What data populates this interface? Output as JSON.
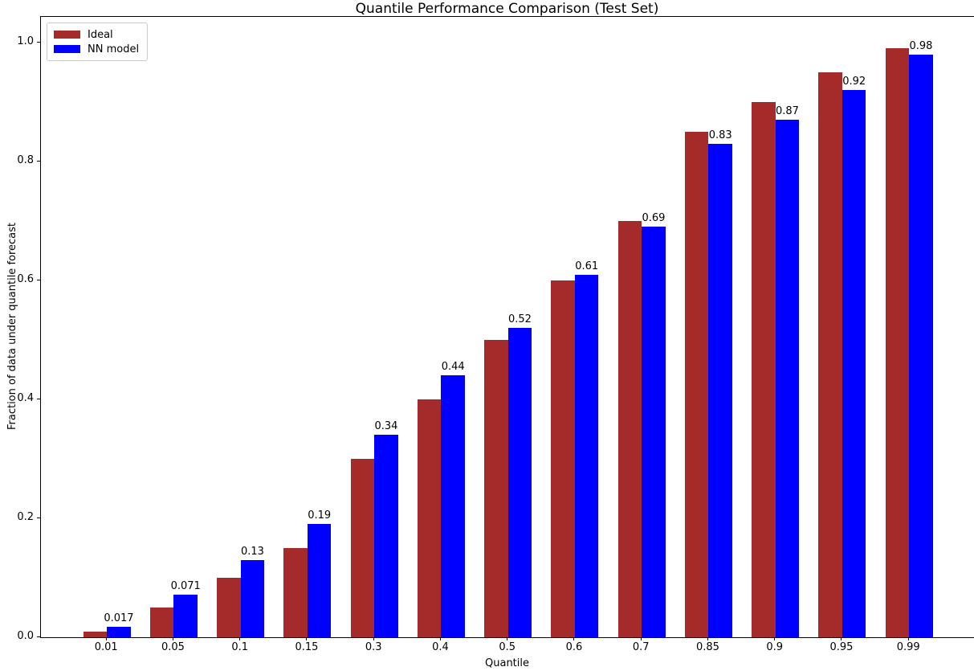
{
  "chart_data": {
    "type": "bar",
    "title": "Quantile Performance Comparison (Test Set)",
    "xlabel": "Quantile",
    "ylabel": "Fraction of data under quantile forecast",
    "categories": [
      "0.01",
      "0.05",
      "0.1",
      "0.15",
      "0.3",
      "0.4",
      "0.5",
      "0.6",
      "0.7",
      "0.85",
      "0.9",
      "0.95",
      "0.99"
    ],
    "series": [
      {
        "name": "Ideal",
        "color": "#A52A2A",
        "values": [
          0.01,
          0.05,
          0.1,
          0.15,
          0.3,
          0.4,
          0.5,
          0.6,
          0.7,
          0.85,
          0.9,
          0.95,
          0.99
        ]
      },
      {
        "name": "NN model",
        "color": "#0000FF",
        "values": [
          0.017,
          0.071,
          0.13,
          0.19,
          0.34,
          0.44,
          0.52,
          0.61,
          0.69,
          0.83,
          0.87,
          0.92,
          0.98
        ],
        "labels": [
          "0.017",
          "0.071",
          "0.13",
          "0.19",
          "0.34",
          "0.44",
          "0.52",
          "0.61",
          "0.69",
          "0.83",
          "0.87",
          "0.92",
          "0.98"
        ]
      }
    ],
    "yticks": [
      "0.0",
      "0.2",
      "0.4",
      "0.6",
      "0.8",
      "1.0"
    ],
    "ylim": [
      0,
      1.043
    ],
    "grid": false,
    "legend_position": "upper left"
  }
}
